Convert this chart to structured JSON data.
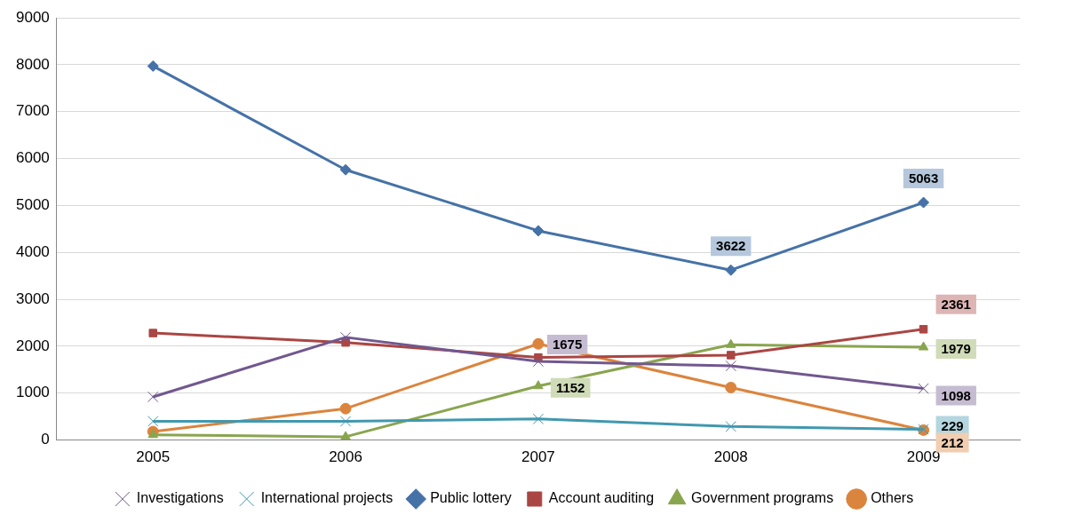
{
  "chart_data": {
    "type": "line",
    "categories": [
      "2005",
      "2006",
      "2007",
      "2008",
      "2009"
    ],
    "ylim": [
      0,
      9000
    ],
    "yticks": [
      0,
      1000,
      2000,
      3000,
      4000,
      5000,
      6000,
      7000,
      8000,
      9000
    ],
    "grid": "y",
    "legend": "bottom",
    "line_style": "solid",
    "series": [
      {
        "name": "Public lottery",
        "color": "#4572a7",
        "marker": "diamond",
        "values": [
          7970,
          5760,
          4460,
          3622,
          5063
        ],
        "value_labels": [
          null,
          null,
          null,
          "3622",
          "5063"
        ]
      },
      {
        "name": "Account auditing",
        "color": "#aa4643",
        "marker": "square",
        "values": [
          2280,
          2080,
          1760,
          1810,
          2361
        ],
        "value_labels": [
          null,
          null,
          null,
          null,
          "2361"
        ]
      },
      {
        "name": "Government programs",
        "color": "#89a54e",
        "marker": "triangle",
        "values": [
          110,
          70,
          1152,
          2030,
          1979
        ],
        "value_labels": [
          null,
          null,
          "1152",
          null,
          "1979"
        ]
      },
      {
        "name": "Investigations",
        "color": "#71588f",
        "marker": "cross",
        "values": [
          920,
          2190,
          1675,
          1580,
          1098
        ],
        "value_labels": [
          null,
          null,
          "1675",
          null,
          "1098"
        ]
      },
      {
        "name": "International projects",
        "color": "#4198af",
        "marker": "cross",
        "values": [
          400,
          400,
          450,
          290,
          229
        ],
        "value_labels": [
          null,
          null,
          null,
          null,
          "229"
        ]
      },
      {
        "name": "Others",
        "color": "#db843d",
        "marker": "circle",
        "values": [
          180,
          670,
          2050,
          1120,
          212
        ],
        "value_labels": [
          null,
          null,
          null,
          null,
          "212"
        ]
      }
    ]
  }
}
